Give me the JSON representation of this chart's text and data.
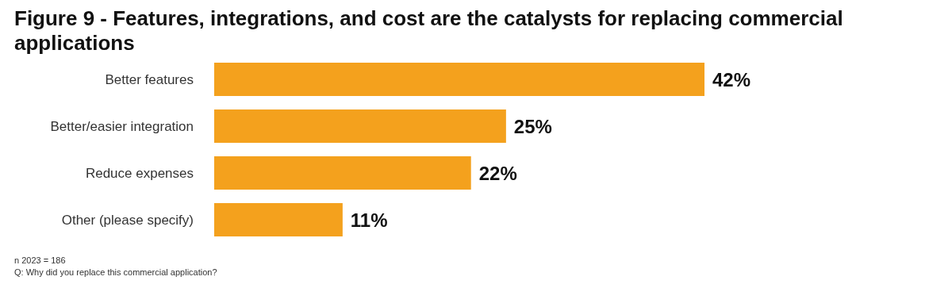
{
  "chart_data": {
    "type": "bar",
    "orientation": "horizontal",
    "title": "Figure 9 - Features, integrations, and cost are the catalysts for replacing commercial applications",
    "categories": [
      "Better features",
      "Better/easier integration",
      "Reduce expenses",
      "Other (please specify)"
    ],
    "values": [
      42,
      25,
      22,
      11
    ],
    "value_labels": [
      "42%",
      "25%",
      "22%",
      "11%"
    ],
    "color": "#f4a11d",
    "annotations": [
      "n 2023 = 186",
      "Q: Why did you replace this commercial application?"
    ]
  }
}
